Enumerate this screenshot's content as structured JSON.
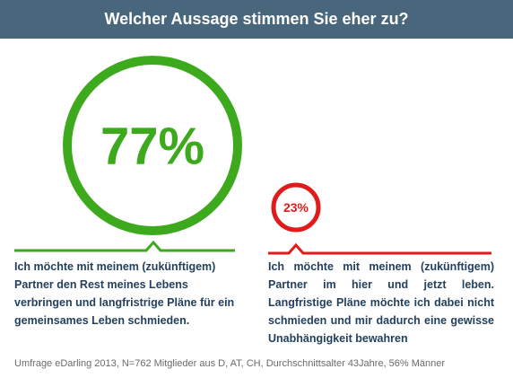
{
  "header": {
    "title": "Welcher Aussage stimmen Sie eher zu?"
  },
  "chart_data": {
    "type": "bubble",
    "title": "Welcher Aussage stimmen Sie eher zu?",
    "series": [
      {
        "value": 77,
        "label": "77%",
        "color": "#3daa1e",
        "statement": "Ich möchte mit meinem (zukünftigem) Partner den Rest meines Lebens verbringen und langfristrige Pläne für ein gemeinsames Leben schmieden."
      },
      {
        "value": 23,
        "label": "23%",
        "color": "#e01b1b",
        "statement": "Ich möchte mit meinem (zukünftigem) Partner im hier und jetzt leben. Langfristige Pläne möchte ich dabei nicht schmieden und mir dadurch eine gewisse Unabhängigkeit bewahren"
      }
    ]
  },
  "statements": {
    "left": "Ich möchte mit meinem (zukünftigem) Partner den Rest meines Lebens verbringen und langfristrige Pläne für ein gemeinsames Leben schmieden.",
    "right": "Ich möchte mit meinem (zukünftigem) Partner im hier und jetzt leben. Langfristige Pläne möchte ich dabei nicht schmieden und mir dadurch eine gewisse Unabhängigkeit bewahren"
  },
  "footnote": "Umfrage eDarling 2013, N=762 Mitglieder aus D, AT, CH, Durchschnittsalter 43Jahre, 56% Männer"
}
